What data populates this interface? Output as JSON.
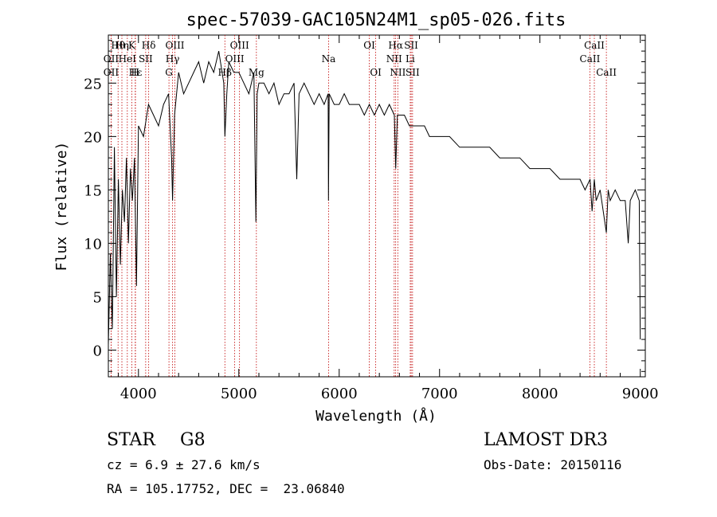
{
  "chart_data": {
    "type": "line",
    "title": "spec-57039-GAC105N24M1_sp05-026.fits",
    "xlabel": "Wavelength (Å)",
    "ylabel": "Flux (relative)",
    "xlim": [
      3700,
      9050
    ],
    "ylim": [
      -2.5,
      29.5
    ],
    "xticks": [
      4000,
      5000,
      6000,
      7000,
      8000,
      9000
    ],
    "yticks": [
      0,
      5,
      10,
      15,
      20,
      25
    ],
    "grid": false,
    "series": [
      {
        "name": "spectrum",
        "x": [
          3700,
          3720,
          3740,
          3760,
          3780,
          3800,
          3820,
          3840,
          3860,
          3880,
          3900,
          3920,
          3940,
          3960,
          3980,
          4000,
          4050,
          4100,
          4150,
          4200,
          4250,
          4300,
          4330,
          4340,
          4360,
          4400,
          4450,
          4500,
          4550,
          4600,
          4650,
          4700,
          4750,
          4800,
          4850,
          4861,
          4880,
          4900,
          4950,
          5000,
          5050,
          5100,
          5150,
          5170,
          5183,
          5200,
          5250,
          5300,
          5350,
          5400,
          5450,
          5500,
          5550,
          5577,
          5600,
          5650,
          5700,
          5750,
          5800,
          5850,
          5890,
          5893,
          5900,
          5950,
          6000,
          6050,
          6100,
          6150,
          6200,
          6250,
          6300,
          6350,
          6400,
          6450,
          6500,
          6550,
          6563,
          6580,
          6600,
          6650,
          6700,
          6750,
          6800,
          6850,
          6900,
          6950,
          7000,
          7100,
          7200,
          7300,
          7400,
          7500,
          7600,
          7700,
          7800,
          7900,
          8000,
          8100,
          8200,
          8300,
          8400,
          8450,
          8500,
          8520,
          8542,
          8560,
          8600,
          8662,
          8680,
          8700,
          8750,
          8800,
          8850,
          8880,
          8900,
          8950,
          8990,
          9000
        ],
        "y": [
          0.5,
          9,
          2,
          19,
          5,
          16,
          8,
          15,
          12,
          18,
          10,
          17,
          14,
          18,
          6,
          21,
          20,
          23,
          22,
          21,
          23,
          24,
          18,
          14,
          22,
          26,
          24,
          25,
          26,
          27,
          25,
          27,
          26,
          28,
          25,
          20,
          24,
          27,
          26,
          26,
          25,
          24,
          26,
          12,
          24,
          25,
          25,
          24,
          25,
          23,
          24,
          24,
          25,
          16,
          24,
          25,
          24,
          23,
          24,
          23,
          24,
          14,
          24,
          23,
          23,
          24,
          23,
          23,
          23,
          22,
          23,
          22,
          23,
          22,
          23,
          22,
          17,
          22,
          22,
          22,
          21,
          21,
          21,
          21,
          20,
          20,
          20,
          20,
          19,
          19,
          19,
          19,
          18,
          18,
          18,
          17,
          17,
          17,
          16,
          16,
          16,
          15,
          16,
          13,
          16,
          14,
          15,
          11,
          15,
          14,
          15,
          14,
          14,
          10,
          14,
          15,
          14,
          1
        ]
      }
    ],
    "line_markers": [
      {
        "label": "Hθ",
        "x": 3797,
        "row": 1
      },
      {
        "label": "OII",
        "x": 3727,
        "row": 2
      },
      {
        "label": "OII",
        "x": 3727,
        "row": 3
      },
      {
        "label": "Hη",
        "x": 3835,
        "row": 1
      },
      {
        "label": "K",
        "x": 3934,
        "row": 1
      },
      {
        "label": "HeI",
        "x": 3889,
        "row": 2
      },
      {
        "label": "SII",
        "x": 4072,
        "row": 2
      },
      {
        "label": "Hε",
        "x": 3970,
        "row": 3
      },
      {
        "label": "H",
        "x": 3968,
        "row": 3
      },
      {
        "label": "Hδ",
        "x": 4102,
        "row": 1
      },
      {
        "label": "OIII",
        "x": 4363,
        "row": 1
      },
      {
        "label": "Hγ",
        "x": 4340,
        "row": 2
      },
      {
        "label": "G",
        "x": 4304,
        "row": 3
      },
      {
        "label": "OIII",
        "x": 5007,
        "row": 1
      },
      {
        "label": "OIII",
        "x": 4959,
        "row": 2
      },
      {
        "label": "Hβ",
        "x": 4861,
        "row": 3
      },
      {
        "label": "Mg",
        "x": 5175,
        "row": 3
      },
      {
        "label": "Na",
        "x": 5894,
        "row": 2
      },
      {
        "label": "OI",
        "x": 6300,
        "row": 1
      },
      {
        "label": "OI",
        "x": 6364,
        "row": 3
      },
      {
        "label": "Hα",
        "x": 6563,
        "row": 1
      },
      {
        "label": "NII",
        "x": 6548,
        "row": 2
      },
      {
        "label": "NII",
        "x": 6584,
        "row": 3
      },
      {
        "label": "SII",
        "x": 6717,
        "row": 1
      },
      {
        "label": "Li",
        "x": 6708,
        "row": 2
      },
      {
        "label": "SII",
        "x": 6731,
        "row": 3
      },
      {
        "label": "CaII",
        "x": 8542,
        "row": 1
      },
      {
        "label": "CaII",
        "x": 8498,
        "row": 2
      },
      {
        "label": "CaII",
        "x": 8662,
        "row": 3
      }
    ]
  },
  "info": {
    "class_label": "STAR",
    "subclass": "G8",
    "survey": "LAMOST DR3",
    "cz": "cz = 6.9 ± 27.6 km/s",
    "obs_date": "Obs-Date: 20150116",
    "coords": "RA = 105.17752, DEC =  23.06840"
  },
  "colors": {
    "axis": "#000000",
    "spectrum": "#000000",
    "marker_line": "#c00000",
    "background": "#ffffff"
  }
}
